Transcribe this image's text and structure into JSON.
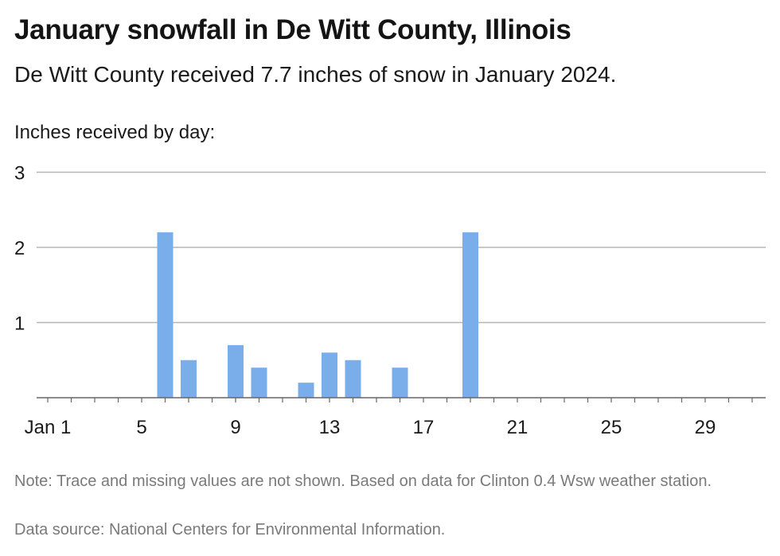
{
  "header": {
    "title": "January snowfall in De Witt County, Illinois",
    "subtitle": "De Witt County received 7.7 inches of snow in January 2024.",
    "axis_caption": "Inches received by day:"
  },
  "footer": {
    "note": "Note: Trace and missing values are not shown. Based on data for Clinton 0.4 Wsw weather station.",
    "source": "Data source: National Centers for Environmental Information."
  },
  "chart_data": {
    "type": "bar",
    "title": "January snowfall in De Witt County, Illinois",
    "subtitle": "De Witt County received 7.7 inches of snow in January 2024.",
    "ylabel": "Inches received by day:",
    "xlabel": "",
    "x_domain": [
      1,
      31
    ],
    "ylim": [
      0,
      3
    ],
    "y_ticks": [
      1,
      2,
      3
    ],
    "x_ticks": [
      {
        "day": 1,
        "label": "Jan 1"
      },
      {
        "day": 5,
        "label": "5"
      },
      {
        "day": 9,
        "label": "9"
      },
      {
        "day": 13,
        "label": "13"
      },
      {
        "day": 17,
        "label": "17"
      },
      {
        "day": 21,
        "label": "21"
      },
      {
        "day": 25,
        "label": "25"
      },
      {
        "day": 29,
        "label": "29"
      }
    ],
    "grid": true,
    "bar_color": "#7aaeea",
    "series": [
      {
        "values_by_day": [
          {
            "day": 6,
            "value": 2.2
          },
          {
            "day": 7,
            "value": 0.5
          },
          {
            "day": 9,
            "value": 0.7
          },
          {
            "day": 10,
            "value": 0.4
          },
          {
            "day": 12,
            "value": 0.2
          },
          {
            "day": 13,
            "value": 0.6
          },
          {
            "day": 14,
            "value": 0.5
          },
          {
            "day": 16,
            "value": 0.4
          },
          {
            "day": 19,
            "value": 2.2
          }
        ]
      }
    ]
  }
}
